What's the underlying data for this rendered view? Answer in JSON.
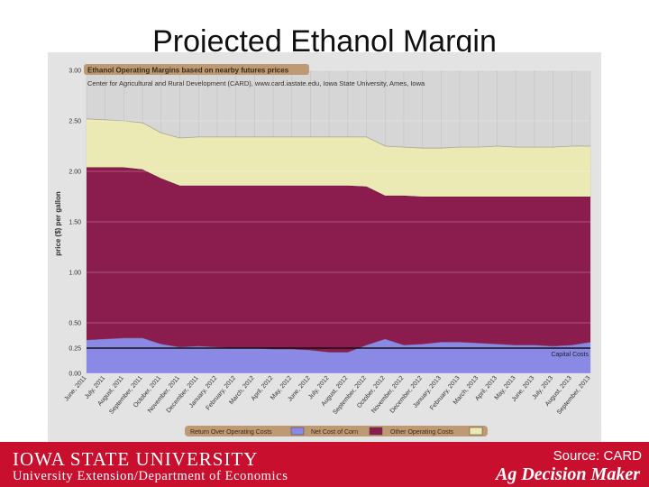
{
  "slide": {
    "title": "Projected Ethanol Margin",
    "footer_logo": "IOWA STATE UNIVERSITY",
    "footer_sub": "University Extension/Department of Economics",
    "source": "Source: CARD",
    "brand": "Ag Decision Maker"
  },
  "chart_data": {
    "type": "area",
    "title": "Ethanol Operating Margins based on nearby futures prices",
    "subtitle": "Center for Agricultural and Rural Development (CARD), www.card.iastate.edu, Iowa State University, Ames, Iowa",
    "ylabel": "price ($) per gallon",
    "xlabel": "",
    "ylim": [
      0,
      3
    ],
    "yticks": [
      "0.00",
      "0.25",
      "0.50",
      "1.00",
      "1.50",
      "2.00",
      "2.50",
      "3.00"
    ],
    "grid": true,
    "stacked": true,
    "legend_position": "bottom",
    "categories": [
      "June, 2011",
      "July, 2011",
      "August, 2011",
      "September, 2011",
      "October, 2011",
      "November, 2011",
      "December, 2011",
      "January, 2012",
      "February, 2012",
      "March, 2012",
      "April, 2012",
      "May, 2012",
      "June, 2012",
      "July, 2012",
      "August, 2012",
      "September, 2012",
      "October, 2012",
      "November, 2012",
      "December, 2012",
      "January, 2013",
      "February, 2013",
      "March, 2013",
      "April, 2013",
      "May, 2013",
      "June, 2013",
      "July, 2013",
      "August, 2013",
      "September, 2013"
    ],
    "series": [
      {
        "name": "Return Over Operating Costs",
        "color": "#8a8ae6",
        "values": [
          0.33,
          0.34,
          0.35,
          0.35,
          0.29,
          0.26,
          0.27,
          0.26,
          0.25,
          0.25,
          0.24,
          0.24,
          0.23,
          0.21,
          0.21,
          0.28,
          0.34,
          0.28,
          0.29,
          0.31,
          0.31,
          0.3,
          0.29,
          0.28,
          0.28,
          0.27,
          0.28,
          0.31
        ]
      },
      {
        "name": "Net Cost of Corn",
        "color": "#8b1c4e",
        "values": [
          1.71,
          1.7,
          1.69,
          1.67,
          1.64,
          1.6,
          1.59,
          1.6,
          1.61,
          1.61,
          1.62,
          1.62,
          1.63,
          1.65,
          1.65,
          1.57,
          1.42,
          1.48,
          1.46,
          1.44,
          1.44,
          1.45,
          1.46,
          1.47,
          1.47,
          1.48,
          1.47,
          1.44
        ]
      },
      {
        "name": "Other Operating Costs",
        "color": "#ebe9b4",
        "values": [
          0.48,
          0.47,
          0.46,
          0.46,
          0.45,
          0.47,
          0.48,
          0.48,
          0.48,
          0.48,
          0.48,
          0.48,
          0.48,
          0.48,
          0.48,
          0.49,
          0.49,
          0.48,
          0.48,
          0.48,
          0.49,
          0.49,
          0.5,
          0.49,
          0.49,
          0.49,
          0.5,
          0.5
        ]
      }
    ],
    "reference_lines": [
      {
        "label": "Capital Costs",
        "y": 0.25,
        "color": "#111111"
      }
    ]
  }
}
